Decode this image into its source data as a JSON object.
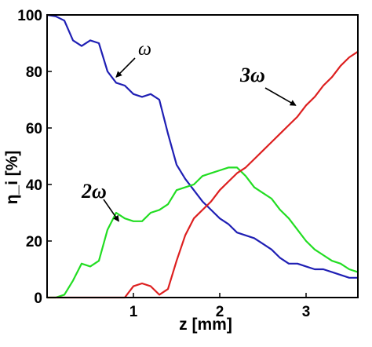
{
  "chart_data": {
    "type": "line",
    "title": "",
    "xlabel": "z [mm]",
    "ylabel": "η_i [%]",
    "xlim": [
      0,
      3.6
    ],
    "ylim": [
      0,
      100
    ],
    "x_ticks": [
      1,
      2,
      3
    ],
    "x_tick_labels": [
      "1",
      "2",
      "3"
    ],
    "y_ticks": [
      0,
      20,
      40,
      60,
      80,
      100
    ],
    "y_tick_labels": [
      "0",
      "20",
      "40",
      "60",
      "80",
      "100"
    ],
    "grid": false,
    "series": [
      {
        "name": "ω",
        "color": "#1f1fb4",
        "x": [
          0.0,
          0.1,
          0.2,
          0.3,
          0.4,
          0.5,
          0.6,
          0.7,
          0.8,
          0.9,
          1.0,
          1.1,
          1.2,
          1.3,
          1.4,
          1.5,
          1.6,
          1.7,
          1.8,
          1.9,
          2.0,
          2.1,
          2.2,
          2.3,
          2.4,
          2.5,
          2.6,
          2.7,
          2.8,
          2.9,
          3.0,
          3.1,
          3.2,
          3.3,
          3.4,
          3.5,
          3.6
        ],
        "y": [
          100,
          99.5,
          98,
          91,
          89,
          91,
          90,
          80,
          76,
          75,
          72,
          71,
          72,
          70,
          58,
          47,
          42,
          38,
          34,
          31,
          28,
          26,
          23,
          22,
          21,
          19,
          17,
          14,
          12,
          12,
          11,
          10,
          10,
          9,
          8,
          7,
          7
        ]
      },
      {
        "name": "2ω",
        "color": "#22dd22",
        "x": [
          0.0,
          0.1,
          0.2,
          0.3,
          0.4,
          0.5,
          0.6,
          0.7,
          0.8,
          0.9,
          1.0,
          1.1,
          1.2,
          1.3,
          1.4,
          1.5,
          1.6,
          1.7,
          1.8,
          1.9,
          2.0,
          2.1,
          2.2,
          2.3,
          2.4,
          2.5,
          2.6,
          2.7,
          2.8,
          2.9,
          3.0,
          3.1,
          3.2,
          3.3,
          3.4,
          3.5,
          3.6
        ],
        "y": [
          0,
          0,
          1,
          6,
          12,
          11,
          13,
          24,
          30,
          28,
          27,
          27,
          30,
          31,
          33,
          38,
          39,
          40,
          43,
          44,
          45,
          46,
          46,
          43,
          39,
          37,
          35,
          31,
          28,
          24,
          20,
          17,
          15,
          13,
          12,
          10,
          9
        ]
      },
      {
        "name": "3ω",
        "color": "#dd1f1f",
        "x": [
          0.0,
          0.1,
          0.2,
          0.3,
          0.4,
          0.5,
          0.6,
          0.7,
          0.8,
          0.9,
          1.0,
          1.1,
          1.2,
          1.3,
          1.4,
          1.5,
          1.6,
          1.7,
          1.8,
          1.9,
          2.0,
          2.1,
          2.2,
          2.3,
          2.4,
          2.5,
          2.6,
          2.7,
          2.8,
          2.9,
          3.0,
          3.1,
          3.2,
          3.3,
          3.4,
          3.5,
          3.6
        ],
        "y": [
          0,
          0,
          0,
          0,
          0,
          0,
          0,
          0,
          0,
          0,
          4,
          5,
          4,
          1,
          3,
          13,
          22,
          28,
          31,
          34,
          38,
          41,
          44,
          46,
          49,
          52,
          55,
          58,
          61,
          64,
          68,
          71,
          75,
          78,
          82,
          85,
          87
        ]
      }
    ],
    "annotations": [
      {
        "text": "ω",
        "arrow_to": [
          0.8,
          78
        ]
      },
      {
        "text": "2ω",
        "arrow_to": [
          0.83,
          27
        ]
      },
      {
        "text": "3ω",
        "arrow_to": [
          2.88,
          68
        ]
      }
    ]
  }
}
